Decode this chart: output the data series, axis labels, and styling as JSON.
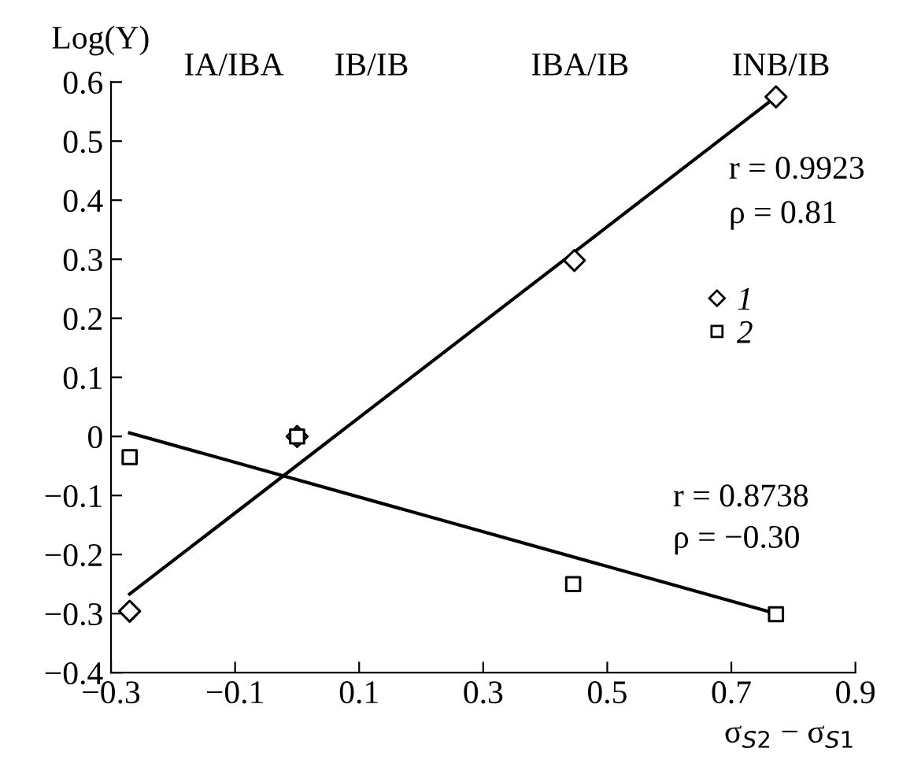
{
  "chart_data": {
    "type": "scatter",
    "ylabel": "Log(Y)",
    "xlabel": "σ$_{S2}$ − σ$_{S1}$",
    "xlim": [
      -0.3,
      0.9
    ],
    "xticks": [
      -0.3,
      -0.1,
      0.1,
      0.3,
      0.5,
      0.7,
      0.9
    ],
    "ylim": [
      -0.4,
      0.6
    ],
    "yticks": [
      -0.4,
      -0.3,
      -0.2,
      -0.1,
      0,
      0.1,
      0.2,
      0.3,
      0.4,
      0.5,
      0.6
    ],
    "grid": false,
    "legend": "right",
    "annotations": [
      "IA/IBA",
      "IB/IB",
      "IBA/IB",
      "INB/IB",
      "r = 0.9923",
      "ρ = 0.81",
      "r = 0.8738",
      "ρ = −0.30"
    ],
    "series": [
      {
        "name": "1",
        "color": "#000000",
        "marker": "diamond",
        "x": [
          -0.27,
          0,
          0.447,
          0.772
        ],
        "values": [
          -0.296,
          0,
          0.298,
          0.575
        ]
      },
      {
        "name": "2",
        "color": "#000000",
        "marker": "square",
        "x": [
          -0.27,
          0,
          0.445,
          0.772
        ],
        "values": [
          -0.035,
          0,
          -0.25,
          -0.301
        ]
      },
      {
        "type": "line",
        "color": "#000000",
        "x": [
          -0.27,
          0.772
        ],
        "values": [
          -0.267,
          0.575
        ]
      },
      {
        "type": "line",
        "color": "#000000",
        "x": [
          -0.27,
          0.772
        ],
        "values": [
          0.006,
          -0.3
        ]
      }
    ]
  }
}
